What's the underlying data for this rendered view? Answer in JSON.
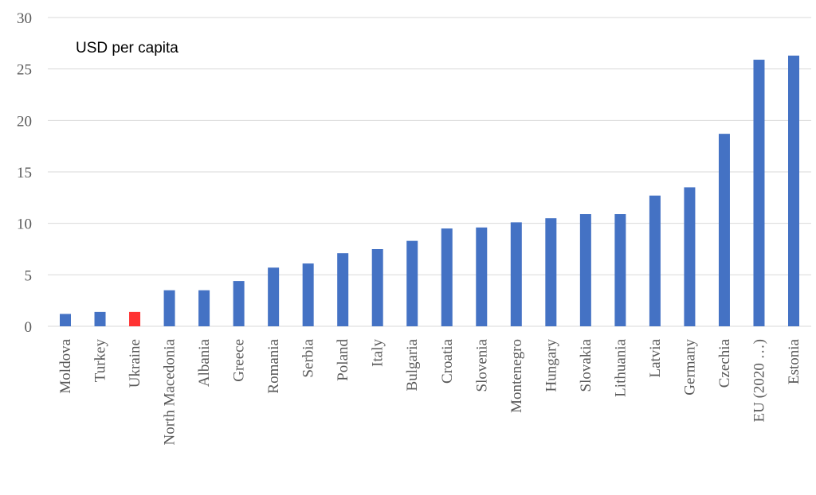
{
  "chart_data": {
    "type": "bar",
    "title": "",
    "xlabel": "",
    "ylabel": "USD per capita",
    "ylim": [
      0,
      30
    ],
    "yticks": [
      0,
      5,
      10,
      15,
      20,
      25,
      30
    ],
    "grid": true,
    "legend": "none",
    "categories": [
      "Moldova",
      "Turkey",
      "Ukraine",
      "North Macedonia",
      "Albania",
      "Greece",
      "Romania",
      "Serbia",
      "Poland",
      "Italy",
      "Bulgaria",
      "Croatia",
      "Slovenia",
      "Montenegro",
      "Hungary",
      "Slovakia",
      "Lithuania",
      "Latvia",
      "Germany",
      "Czechia",
      "EU (2020 …)",
      "Estonia"
    ],
    "values": [
      1.2,
      1.4,
      1.4,
      3.5,
      3.5,
      4.4,
      5.7,
      6.1,
      7.1,
      7.5,
      8.3,
      9.5,
      9.6,
      10.1,
      10.5,
      10.9,
      10.9,
      12.7,
      13.5,
      18.7,
      25.9,
      26.3
    ],
    "colors": {
      "default": "#4472c4",
      "highlight": "#ff3333"
    },
    "highlight_category": "Ukraine"
  }
}
